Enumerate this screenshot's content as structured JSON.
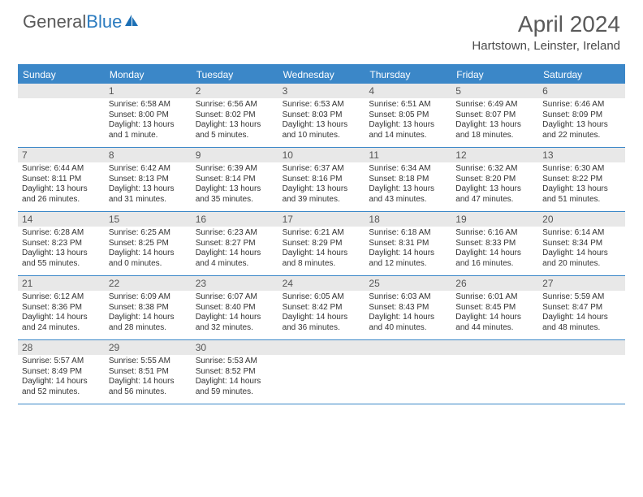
{
  "logo": {
    "text1": "General",
    "text2": "Blue"
  },
  "title": "April 2024",
  "location": "Hartstown, Leinster, Ireland",
  "dayHeaders": [
    "Sunday",
    "Monday",
    "Tuesday",
    "Wednesday",
    "Thursday",
    "Friday",
    "Saturday"
  ],
  "colors": {
    "headerBg": "#3b87c8",
    "dateBarBg": "#e8e8e8",
    "text": "#333333",
    "titleText": "#5a5a5a"
  },
  "weeks": [
    [
      {
        "date": "",
        "lines": []
      },
      {
        "date": "1",
        "lines": [
          "Sunrise: 6:58 AM",
          "Sunset: 8:00 PM",
          "Daylight: 13 hours and 1 minute."
        ]
      },
      {
        "date": "2",
        "lines": [
          "Sunrise: 6:56 AM",
          "Sunset: 8:02 PM",
          "Daylight: 13 hours and 5 minutes."
        ]
      },
      {
        "date": "3",
        "lines": [
          "Sunrise: 6:53 AM",
          "Sunset: 8:03 PM",
          "Daylight: 13 hours and 10 minutes."
        ]
      },
      {
        "date": "4",
        "lines": [
          "Sunrise: 6:51 AM",
          "Sunset: 8:05 PM",
          "Daylight: 13 hours and 14 minutes."
        ]
      },
      {
        "date": "5",
        "lines": [
          "Sunrise: 6:49 AM",
          "Sunset: 8:07 PM",
          "Daylight: 13 hours and 18 minutes."
        ]
      },
      {
        "date": "6",
        "lines": [
          "Sunrise: 6:46 AM",
          "Sunset: 8:09 PM",
          "Daylight: 13 hours and 22 minutes."
        ]
      }
    ],
    [
      {
        "date": "7",
        "lines": [
          "Sunrise: 6:44 AM",
          "Sunset: 8:11 PM",
          "Daylight: 13 hours and 26 minutes."
        ]
      },
      {
        "date": "8",
        "lines": [
          "Sunrise: 6:42 AM",
          "Sunset: 8:13 PM",
          "Daylight: 13 hours and 31 minutes."
        ]
      },
      {
        "date": "9",
        "lines": [
          "Sunrise: 6:39 AM",
          "Sunset: 8:14 PM",
          "Daylight: 13 hours and 35 minutes."
        ]
      },
      {
        "date": "10",
        "lines": [
          "Sunrise: 6:37 AM",
          "Sunset: 8:16 PM",
          "Daylight: 13 hours and 39 minutes."
        ]
      },
      {
        "date": "11",
        "lines": [
          "Sunrise: 6:34 AM",
          "Sunset: 8:18 PM",
          "Daylight: 13 hours and 43 minutes."
        ]
      },
      {
        "date": "12",
        "lines": [
          "Sunrise: 6:32 AM",
          "Sunset: 8:20 PM",
          "Daylight: 13 hours and 47 minutes."
        ]
      },
      {
        "date": "13",
        "lines": [
          "Sunrise: 6:30 AM",
          "Sunset: 8:22 PM",
          "Daylight: 13 hours and 51 minutes."
        ]
      }
    ],
    [
      {
        "date": "14",
        "lines": [
          "Sunrise: 6:28 AM",
          "Sunset: 8:23 PM",
          "Daylight: 13 hours and 55 minutes."
        ]
      },
      {
        "date": "15",
        "lines": [
          "Sunrise: 6:25 AM",
          "Sunset: 8:25 PM",
          "Daylight: 14 hours and 0 minutes."
        ]
      },
      {
        "date": "16",
        "lines": [
          "Sunrise: 6:23 AM",
          "Sunset: 8:27 PM",
          "Daylight: 14 hours and 4 minutes."
        ]
      },
      {
        "date": "17",
        "lines": [
          "Sunrise: 6:21 AM",
          "Sunset: 8:29 PM",
          "Daylight: 14 hours and 8 minutes."
        ]
      },
      {
        "date": "18",
        "lines": [
          "Sunrise: 6:18 AM",
          "Sunset: 8:31 PM",
          "Daylight: 14 hours and 12 minutes."
        ]
      },
      {
        "date": "19",
        "lines": [
          "Sunrise: 6:16 AM",
          "Sunset: 8:33 PM",
          "Daylight: 14 hours and 16 minutes."
        ]
      },
      {
        "date": "20",
        "lines": [
          "Sunrise: 6:14 AM",
          "Sunset: 8:34 PM",
          "Daylight: 14 hours and 20 minutes."
        ]
      }
    ],
    [
      {
        "date": "21",
        "lines": [
          "Sunrise: 6:12 AM",
          "Sunset: 8:36 PM",
          "Daylight: 14 hours and 24 minutes."
        ]
      },
      {
        "date": "22",
        "lines": [
          "Sunrise: 6:09 AM",
          "Sunset: 8:38 PM",
          "Daylight: 14 hours and 28 minutes."
        ]
      },
      {
        "date": "23",
        "lines": [
          "Sunrise: 6:07 AM",
          "Sunset: 8:40 PM",
          "Daylight: 14 hours and 32 minutes."
        ]
      },
      {
        "date": "24",
        "lines": [
          "Sunrise: 6:05 AM",
          "Sunset: 8:42 PM",
          "Daylight: 14 hours and 36 minutes."
        ]
      },
      {
        "date": "25",
        "lines": [
          "Sunrise: 6:03 AM",
          "Sunset: 8:43 PM",
          "Daylight: 14 hours and 40 minutes."
        ]
      },
      {
        "date": "26",
        "lines": [
          "Sunrise: 6:01 AM",
          "Sunset: 8:45 PM",
          "Daylight: 14 hours and 44 minutes."
        ]
      },
      {
        "date": "27",
        "lines": [
          "Sunrise: 5:59 AM",
          "Sunset: 8:47 PM",
          "Daylight: 14 hours and 48 minutes."
        ]
      }
    ],
    [
      {
        "date": "28",
        "lines": [
          "Sunrise: 5:57 AM",
          "Sunset: 8:49 PM",
          "Daylight: 14 hours and 52 minutes."
        ]
      },
      {
        "date": "29",
        "lines": [
          "Sunrise: 5:55 AM",
          "Sunset: 8:51 PM",
          "Daylight: 14 hours and 56 minutes."
        ]
      },
      {
        "date": "30",
        "lines": [
          "Sunrise: 5:53 AM",
          "Sunset: 8:52 PM",
          "Daylight: 14 hours and 59 minutes."
        ]
      },
      {
        "date": "",
        "lines": []
      },
      {
        "date": "",
        "lines": []
      },
      {
        "date": "",
        "lines": []
      },
      {
        "date": "",
        "lines": []
      }
    ]
  ]
}
